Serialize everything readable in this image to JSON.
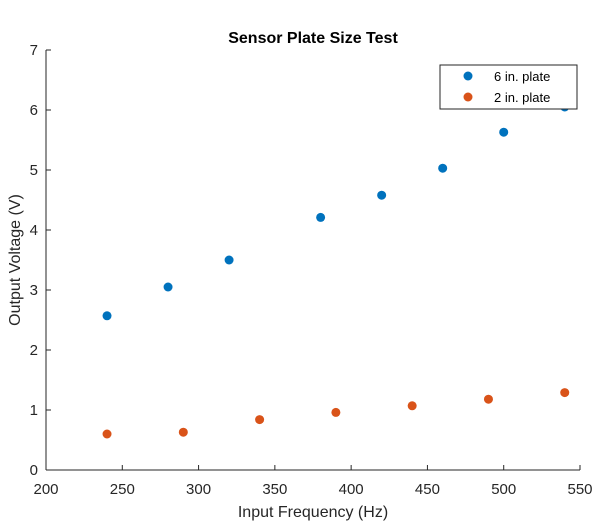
{
  "chart_data": {
    "type": "scatter",
    "title": "Sensor Plate Size Test",
    "xlabel": "Input Frequency (Hz)",
    "ylabel": "Output Voltage (V)",
    "xlim": [
      200,
      550
    ],
    "ylim": [
      0,
      7
    ],
    "xticks": [
      200,
      250,
      300,
      350,
      400,
      450,
      500,
      550
    ],
    "yticks": [
      0,
      1,
      2,
      3,
      4,
      5,
      6,
      7
    ],
    "grid": false,
    "legend_position": "top-right",
    "series": [
      {
        "name": "6 in. plate",
        "color": "#0072BD",
        "x": [
          240,
          280,
          320,
          380,
          420,
          460,
          500,
          540
        ],
        "y": [
          2.57,
          3.05,
          3.5,
          4.21,
          4.58,
          5.03,
          5.63,
          6.05
        ]
      },
      {
        "name": "2 in. plate",
        "color": "#D95319",
        "x": [
          240,
          290,
          340,
          390,
          440,
          490,
          540
        ],
        "y": [
          0.6,
          0.63,
          0.84,
          0.96,
          1.07,
          1.18,
          1.29
        ]
      }
    ]
  }
}
